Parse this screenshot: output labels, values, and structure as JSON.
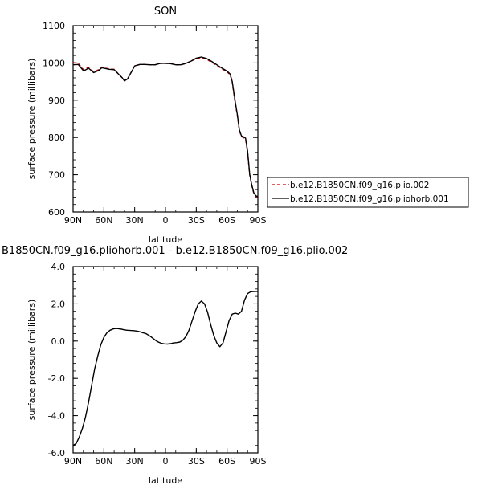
{
  "chart_data": [
    {
      "type": "line",
      "title": "SON",
      "xlabel": "latitude",
      "ylabel": "surface pressure (millibars)",
      "x_ticks": [
        "90N",
        "60N",
        "30N",
        "0",
        "30S",
        "60S",
        "90S"
      ],
      "y_ticks": [
        "600",
        "700",
        "800",
        "900",
        "1000",
        "1100"
      ],
      "xlim": [
        90,
        -90
      ],
      "ylim": [
        600,
        1100
      ],
      "legend_position": "right",
      "series": [
        {
          "name": "b.e12.B1850CN.f09_g16.plio.002",
          "color": "#cc0000",
          "dash": "dashed",
          "x": [
            90,
            85,
            80,
            78,
            75,
            70,
            65,
            62,
            60,
            55,
            50,
            45,
            42,
            40,
            37,
            35,
            32,
            30,
            25,
            20,
            15,
            10,
            5,
            0,
            -5,
            -10,
            -15,
            -20,
            -25,
            -28,
            -30,
            -35,
            -40,
            -45,
            -50,
            -55,
            -60,
            -63,
            -65,
            -68,
            -70,
            -72,
            -74,
            -76,
            -78,
            -80,
            -82,
            -84,
            -86,
            -88,
            -90
          ],
          "y": [
            1001,
            999,
            982,
            985,
            988,
            976,
            982,
            989,
            987,
            984,
            983,
            968,
            960,
            952,
            957,
            967,
            982,
            992,
            996,
            996,
            995,
            995,
            999,
            999,
            998,
            995,
            995,
            999,
            1005,
            1009,
            1012,
            1014,
            1010,
            1002,
            993,
            984,
            976,
            968,
            948,
            890,
            860,
            818,
            802,
            800,
            795,
            760,
            700,
            672,
            650,
            642,
            639
          ]
        },
        {
          "name": "b.e12.B1850CN.f09_g16.pliohorb.001",
          "color": "#000000",
          "dash": "solid",
          "x": [
            90,
            85,
            80,
            78,
            75,
            70,
            65,
            62,
            60,
            55,
            50,
            45,
            42,
            40,
            37,
            35,
            32,
            30,
            25,
            20,
            15,
            10,
            5,
            0,
            -5,
            -10,
            -15,
            -20,
            -25,
            -28,
            -30,
            -35,
            -40,
            -45,
            -50,
            -55,
            -60,
            -63,
            -65,
            -68,
            -70,
            -72,
            -74,
            -76,
            -78,
            -80,
            -82,
            -84,
            -86,
            -88,
            -90
          ],
          "y": [
            995,
            996,
            979,
            981,
            986,
            974,
            980,
            987,
            986,
            983,
            982,
            968,
            960,
            952,
            957,
            967,
            982,
            992,
            996,
            996,
            995,
            995,
            999,
            999,
            998,
            995,
            995,
            999,
            1005,
            1010,
            1013,
            1016,
            1012,
            1004,
            995,
            986,
            978,
            970,
            950,
            895,
            862,
            820,
            804,
            802,
            798,
            764,
            702,
            674,
            652,
            644,
            641
          ]
        }
      ]
    },
    {
      "type": "line",
      "title": "B1850CN.f09_g16.pliohorb.001 - b.e12.B1850CN.f09_g16.plio.002",
      "xlabel": "latitude",
      "ylabel": "surface pressure (millibars)",
      "x_ticks": [
        "90N",
        "60N",
        "30N",
        "0",
        "30S",
        "60S",
        "90S"
      ],
      "y_ticks": [
        "-6.0",
        "-4.0",
        "-2.0",
        "0.0",
        "2.0",
        "4.0"
      ],
      "xlim": [
        90,
        -90
      ],
      "ylim": [
        -6,
        4
      ],
      "series": [
        {
          "color": "#000000",
          "x": [
            90,
            87,
            84,
            81,
            78,
            75,
            72,
            69,
            66,
            63,
            60,
            57,
            54,
            51,
            48,
            45,
            42,
            40,
            37,
            34,
            31,
            28,
            25,
            22,
            19,
            16,
            13,
            10,
            7,
            4,
            1,
            -2,
            -5,
            -8,
            -11,
            -14,
            -17,
            -20,
            -23,
            -26,
            -29,
            -32,
            -35,
            -38,
            -41,
            -44,
            -47,
            -50,
            -53,
            -56,
            -59,
            -62,
            -65,
            -68,
            -71,
            -74,
            -77,
            -80,
            -83,
            -86,
            -89,
            -90
          ],
          "y": [
            -5.6,
            -5.5,
            -5.15,
            -4.7,
            -4.1,
            -3.3,
            -2.4,
            -1.5,
            -0.8,
            -0.2,
            0.2,
            0.45,
            0.58,
            0.65,
            0.68,
            0.66,
            0.63,
            0.6,
            0.58,
            0.57,
            0.56,
            0.54,
            0.5,
            0.45,
            0.4,
            0.3,
            0.18,
            0.05,
            -0.05,
            -0.12,
            -0.15,
            -0.16,
            -0.14,
            -0.1,
            -0.08,
            -0.05,
            0.05,
            0.25,
            0.6,
            1.1,
            1.6,
            2.0,
            2.15,
            2.0,
            1.55,
            0.9,
            0.3,
            -0.1,
            -0.3,
            -0.1,
            0.5,
            1.1,
            1.45,
            1.5,
            1.45,
            1.6,
            2.2,
            2.55,
            2.65,
            2.66,
            2.67,
            2.67
          ]
        }
      ]
    }
  ]
}
